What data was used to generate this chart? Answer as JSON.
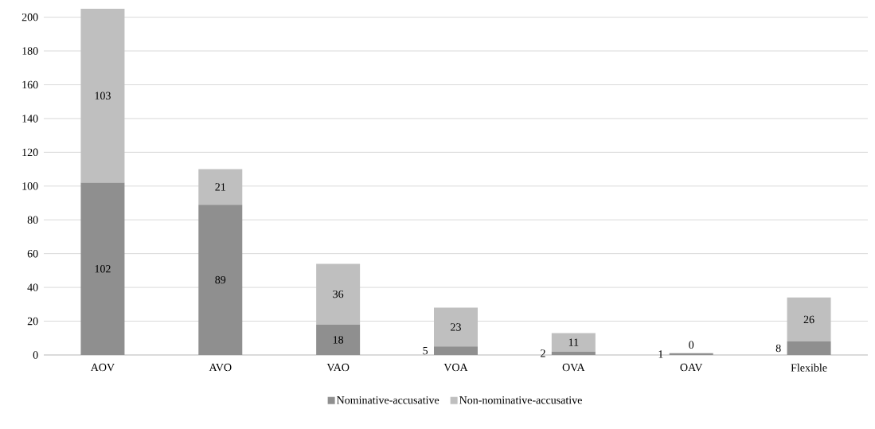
{
  "chart_data": {
    "type": "bar",
    "stacked": true,
    "categories": [
      "AOV",
      "AVO",
      "VAO",
      "VOA",
      "OVA",
      "OAV",
      "Flexible"
    ],
    "series": [
      {
        "name": "Nominative-accusative",
        "color": "#8f8f8f",
        "values": [
          102,
          89,
          18,
          5,
          2,
          1,
          8
        ]
      },
      {
        "name": "Non-nominative-accusative",
        "color": "#bfbfbf",
        "values": [
          103,
          21,
          36,
          23,
          11,
          0,
          26
        ]
      }
    ],
    "ylim": [
      0,
      205
    ],
    "yticks": [
      0,
      20,
      40,
      60,
      80,
      100,
      120,
      140,
      160,
      180,
      200
    ],
    "grid": "y",
    "legend": "bottom",
    "data_labels": true
  }
}
